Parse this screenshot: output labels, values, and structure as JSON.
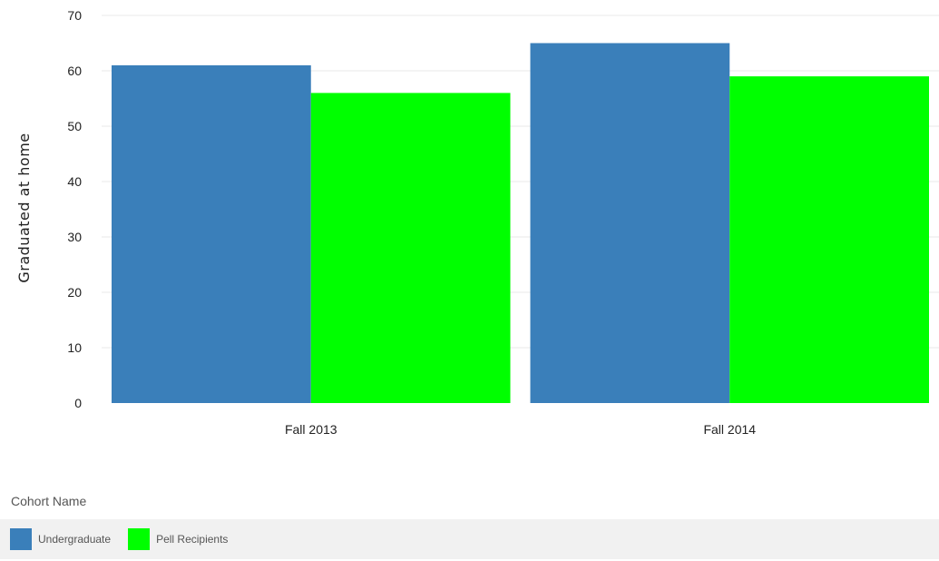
{
  "chart_data": {
    "type": "bar",
    "categories": [
      "Fall 2013",
      "Fall 2014"
    ],
    "series": [
      {
        "name": "Undergraduate",
        "values": [
          61,
          65
        ],
        "color": "#3a7fba"
      },
      {
        "name": "Pell Recipients",
        "values": [
          56,
          59
        ],
        "color": "#00ff00"
      }
    ],
    "ylabel": "Graduated at home",
    "ylim": [
      0,
      70
    ],
    "yticks": [
      0,
      10,
      20,
      30,
      40,
      50,
      60,
      70
    ],
    "grid": true,
    "legend": {
      "title": "Cohort Name",
      "placement": "bottom-left"
    }
  }
}
